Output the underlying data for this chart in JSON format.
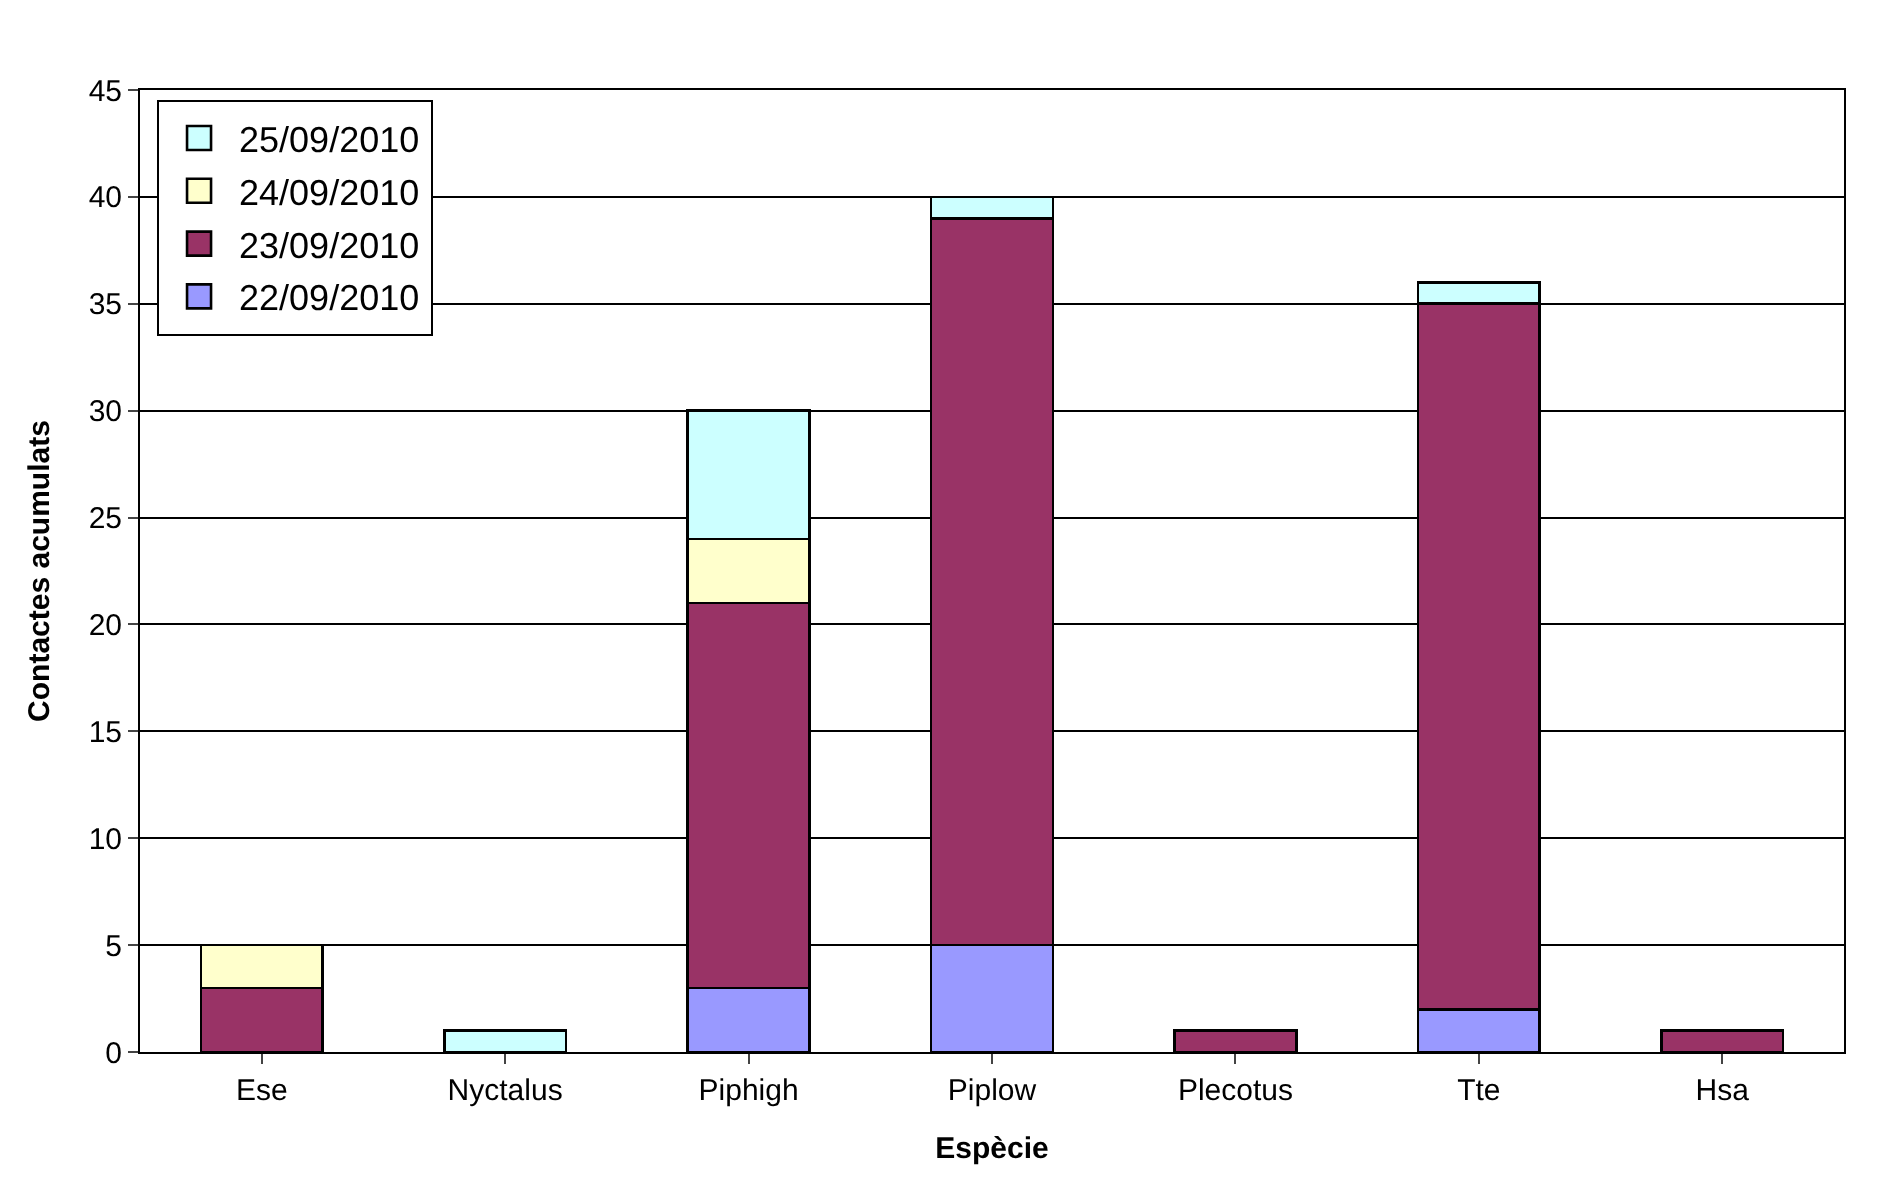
{
  "chart_data": {
    "type": "bar",
    "stacked": true,
    "xlabel": "Espècie",
    "ylabel": "Contactes acumulats",
    "categories": [
      "Ese",
      "Nyctalus",
      "Piphigh",
      "Piplow",
      "Plecotus",
      "Tte",
      "Hsa"
    ],
    "series": [
      {
        "name": "22/09/2010",
        "color": "#9999ff",
        "values": [
          null,
          null,
          3,
          5,
          null,
          2,
          null
        ]
      },
      {
        "name": "23/09/2010",
        "color": "#993366",
        "values": [
          3,
          null,
          18,
          34,
          1,
          33,
          1
        ]
      },
      {
        "name": "24/09/2010",
        "color": "#ffffcc",
        "values": [
          2,
          null,
          3,
          null,
          null,
          null,
          null
        ]
      },
      {
        "name": "25/09/2010",
        "color": "#ccffff",
        "values": [
          null,
          1,
          6,
          1,
          null,
          1,
          null
        ]
      }
    ],
    "ylim": [
      0,
      45
    ],
    "yticks": [
      0,
      5,
      10,
      15,
      20,
      25,
      30,
      35,
      40,
      45
    ],
    "grid": "y",
    "legend": "top left"
  }
}
